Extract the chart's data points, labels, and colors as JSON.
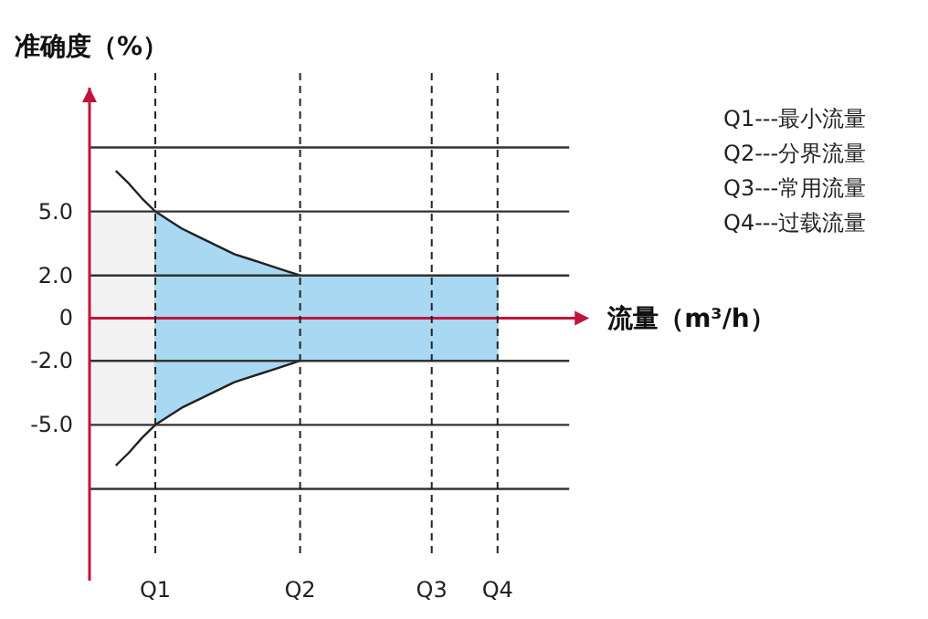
{
  "chart_data": {
    "type": "area",
    "xlabel": "流量（m³/h）",
    "ylabel": "准确度（%）",
    "annotations": [
      "Q1---最小流量",
      "Q2---分界流量",
      "Q3---常用流量",
      "Q4---过载流量"
    ],
    "categories": [
      null,
      null,
      null,
      null,
      null,
      "Q1",
      null,
      null,
      null,
      null,
      null,
      null,
      null,
      null,
      null,
      null,
      "Q2",
      null,
      null,
      null,
      null,
      null,
      null,
      null,
      null,
      null,
      "Q3",
      null,
      null,
      null,
      null,
      "Q4",
      null,
      null,
      null,
      null,
      null,
      null
    ],
    "ylim": [
      -12.3,
      10.8
    ],
    "yticks": [
      {
        "value": 8,
        "label": null
      },
      {
        "value": 5,
        "label": "5.0"
      },
      {
        "value": 2,
        "label": "2.0"
      },
      0,
      {
        "value": -2,
        "label": "-2.0"
      },
      {
        "value": -5,
        "label": "-5.0"
      },
      {
        "value": -8,
        "label": null
      }
    ],
    "grid": "y",
    "ref_lines": [
      {
        "axis": "y",
        "value": 0,
        "line_style": "solid",
        "color": "#c0143c"
      },
      {
        "axis": "x",
        "value": "Q1",
        "line_style": "dashed",
        "color": "#222222"
      },
      {
        "axis": "x",
        "value": "Q2",
        "line_style": "dashed",
        "color": "#222222"
      },
      {
        "axis": "x",
        "value": "Q3",
        "line_style": "dashed",
        "color": "#222222"
      },
      {
        "axis": "x",
        "value": "Q4",
        "line_style": "dashed",
        "color": "#222222"
      }
    ],
    "series": [
      {
        "color": "#f2f2f2",
        "values": [
          5,
          5,
          5,
          5,
          5,
          5,
          null,
          null,
          null,
          null,
          null,
          null,
          null,
          null,
          null,
          null,
          null,
          null,
          null,
          null,
          null,
          null,
          null,
          null,
          null,
          null,
          null,
          null,
          null,
          null,
          null,
          null,
          null,
          null,
          null,
          null,
          null,
          null
        ]
      },
      {
        "color": "#f2f2f2",
        "values": [
          -5,
          -5,
          -5,
          -5,
          -5,
          -5,
          null,
          null,
          null,
          null,
          null,
          null,
          null,
          null,
          null,
          null,
          null,
          null,
          null,
          null,
          null,
          null,
          null,
          null,
          null,
          null,
          null,
          null,
          null,
          null,
          null,
          null,
          null,
          null,
          null,
          null,
          null,
          null
        ]
      },
      {
        "color": "#a9d8f2",
        "values": [
          null,
          null,
          null,
          null,
          null,
          5,
          4.6,
          4.2,
          3.9,
          3.6,
          3.3,
          3.0,
          2.8,
          2.6,
          2.4,
          2.2,
          2,
          2,
          2,
          2,
          2,
          2,
          2,
          2,
          2,
          2,
          2,
          2,
          2,
          2,
          2,
          2,
          null,
          null,
          null,
          null,
          null,
          null
        ]
      },
      {
        "color": "#a9d8f2",
        "values": [
          null,
          null,
          null,
          null,
          null,
          -5,
          -4.6,
          -4.2,
          -3.9,
          -3.6,
          -3.3,
          -3.0,
          -2.8,
          -2.6,
          -2.4,
          -2.2,
          -2,
          -2,
          -2,
          -2,
          -2,
          -2,
          -2,
          -2,
          -2,
          -2,
          -2,
          -2,
          -2,
          -2,
          -2,
          -2,
          null,
          null,
          null,
          null,
          null,
          null
        ]
      },
      {
        "type": "line",
        "color": "#222222",
        "values": [
          null,
          null,
          6.9,
          6.3,
          5.6,
          5,
          4.6,
          4.2,
          3.9,
          3.6,
          3.3,
          3.0,
          2.8,
          2.6,
          2.4,
          2.2,
          2,
          null,
          null,
          null,
          null,
          null,
          null,
          null,
          null,
          null,
          null,
          null,
          null,
          null,
          null,
          null,
          null,
          null,
          null,
          null,
          null,
          null
        ]
      },
      {
        "type": "line",
        "color": "#222222",
        "values": [
          null,
          null,
          -6.9,
          -6.3,
          -5.6,
          -5,
          -4.6,
          -4.2,
          -3.9,
          -3.6,
          -3.3,
          -3.0,
          -2.8,
          -2.6,
          -2.4,
          -2.2,
          -2,
          null,
          null,
          null,
          null,
          null,
          null,
          null,
          null,
          null,
          null,
          null,
          null,
          null,
          null,
          null,
          null,
          null,
          null,
          null,
          null,
          null
        ]
      }
    ]
  }
}
